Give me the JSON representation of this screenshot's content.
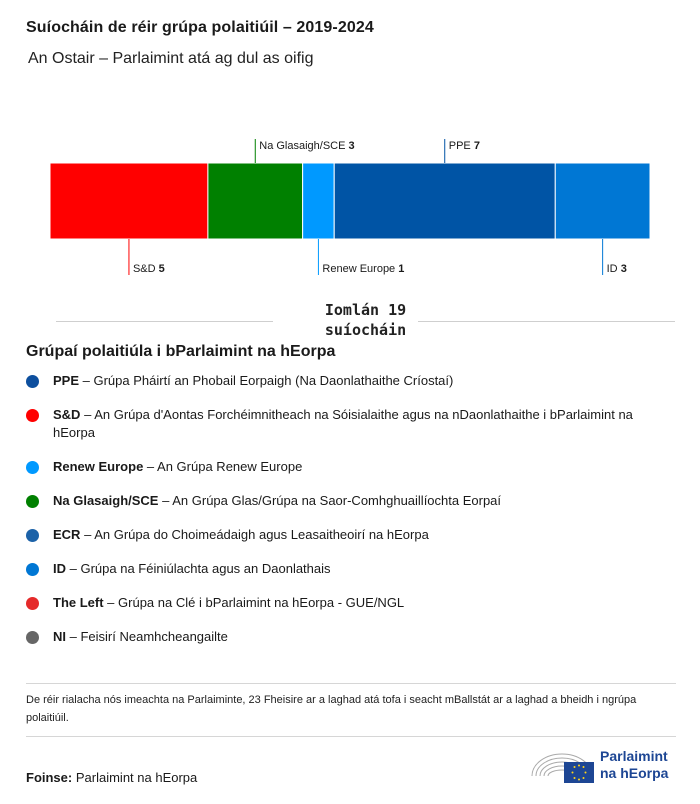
{
  "header": {
    "title": "Suíocháin de réir grúpa polaitiúil – 2019-2024",
    "subtitle": "An Ostair – Parlaimint atá ag dul as oifig"
  },
  "chart_data": {
    "type": "bar",
    "orientation": "horizontal-stacked",
    "categories": [
      "S&D",
      "Na Glasaigh/SCE",
      "Renew Europe",
      "PPE",
      "ID"
    ],
    "values": [
      5,
      3,
      1,
      7,
      3
    ],
    "colors": [
      "#ff0000",
      "#008000",
      "#0099ff",
      "#0054a5",
      "#0077d4"
    ],
    "label_side": [
      "below",
      "above",
      "below",
      "above",
      "below"
    ],
    "total": 19
  },
  "total_label": {
    "line1": "Iomlán 19",
    "line2": "suíocháin"
  },
  "legend": {
    "title": "Grúpaí polaitiúla i bParlaimint na hEorpa",
    "items": [
      {
        "name": "PPE",
        "desc": "Grúpa Pháirtí an Phobail Eorpaigh (Na Daonlathaithe Críostaí)",
        "color": "#0d4f9e"
      },
      {
        "name": "S&D",
        "desc": "An Grúpa d'Aontas Forchéimnitheach na Sóisialaithe agus na nDaonlathaithe i bParlaimint na hEorpa",
        "color": "#ff0000"
      },
      {
        "name": "Renew Europe",
        "desc": "An Grúpa Renew Europe",
        "color": "#0099ff"
      },
      {
        "name": "Na Glasaigh/SCE",
        "desc": "An Grúpa Glas/Grúpa na Saor-Comhghuaillíochta Eorpaí",
        "color": "#008000"
      },
      {
        "name": "ECR",
        "desc": "An Grúpa do Choimeádaigh agus Leasaitheoirí na hEorpa",
        "color": "#1c62a8"
      },
      {
        "name": "ID",
        "desc": "Grúpa na Féiniúlachta agus an Daonlathais",
        "color": "#0077d4"
      },
      {
        "name": "The Left",
        "desc": "Grúpa na Clé i bParlaimint na hEorpa - GUE/NGL",
        "color": "#e52a2a"
      },
      {
        "name": "NI",
        "desc": "Feisirí Neamhcheangailte",
        "color": "#666666"
      }
    ]
  },
  "footer": {
    "note": "De réir rialacha nós imeachta na Parlaiminte, 23 Fheisire ar a laghad atá tofa i seacht mBallstát ar a laghad a bheidh i ngrúpa polaitiúil.",
    "source_label": "Foinse:",
    "source_value": "Parlaimint na hEorpa",
    "logo_line1": "Parlaimint",
    "logo_line2": "na hEorpa"
  }
}
